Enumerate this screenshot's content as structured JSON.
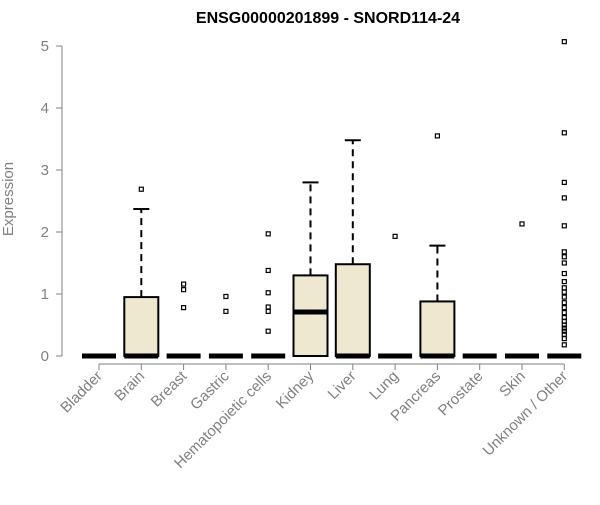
{
  "chart_data": {
    "type": "box",
    "title": "ENSG00000201899 - SNORD114-24",
    "xlabel": "",
    "ylabel": "Expression",
    "ylim": [
      0,
      5.2
    ],
    "yticks": [
      0,
      1,
      2,
      3,
      4,
      5
    ],
    "grid": false,
    "legend": "none",
    "box_fill": "#efe8d0",
    "categories": [
      "Bladder",
      "Brain",
      "Breast",
      "Gastric",
      "Hematopoietic cells",
      "Kidney",
      "Liver",
      "Lung",
      "Pancreas",
      "Prostate",
      "Skin",
      "Unknown / Other"
    ],
    "boxes": [
      {
        "category": "Bladder",
        "q1": 0,
        "median": 0,
        "q3": 0,
        "whisker_low": 0,
        "whisker_high": 0,
        "outliers": []
      },
      {
        "category": "Brain",
        "q1": 0,
        "median": 0,
        "q3": 0.95,
        "whisker_low": 0,
        "whisker_high": 2.37,
        "outliers": [
          2.69
        ]
      },
      {
        "category": "Breast",
        "q1": 0,
        "median": 0,
        "q3": 0,
        "whisker_low": 0,
        "whisker_high": 0,
        "outliers": [
          0.78,
          1.07,
          1.16
        ]
      },
      {
        "category": "Gastric",
        "q1": 0,
        "median": 0,
        "q3": 0,
        "whisker_low": 0,
        "whisker_high": 0,
        "outliers": [
          0.72,
          0.96
        ]
      },
      {
        "category": "Hematopoietic cells",
        "q1": 0,
        "median": 0,
        "q3": 0,
        "whisker_low": 0,
        "whisker_high": 0,
        "outliers": [
          0.4,
          0.72,
          0.79,
          1.02,
          1.38,
          1.97
        ]
      },
      {
        "category": "Kidney",
        "q1": 0,
        "median": 0.71,
        "q3": 1.3,
        "whisker_low": 0,
        "whisker_high": 2.8,
        "outliers": []
      },
      {
        "category": "Liver",
        "q1": 0,
        "median": 0,
        "q3": 1.48,
        "whisker_low": 0,
        "whisker_high": 3.48,
        "outliers": []
      },
      {
        "category": "Lung",
        "q1": 0,
        "median": 0,
        "q3": 0,
        "whisker_low": 0,
        "whisker_high": 0,
        "outliers": [
          1.93
        ]
      },
      {
        "category": "Pancreas",
        "q1": 0,
        "median": 0,
        "q3": 0.88,
        "whisker_low": 0,
        "whisker_high": 1.78,
        "outliers": [
          3.55
        ]
      },
      {
        "category": "Prostate",
        "q1": 0,
        "median": 0,
        "q3": 0,
        "whisker_low": 0,
        "whisker_high": 0,
        "outliers": []
      },
      {
        "category": "Skin",
        "q1": 0,
        "median": 0,
        "q3": 0,
        "whisker_low": 0,
        "whisker_high": 0,
        "outliers": [
          2.13
        ]
      },
      {
        "category": "Unknown / Other",
        "q1": 0,
        "median": 0,
        "q3": 0,
        "whisker_low": 0,
        "whisker_high": 0,
        "outliers": [
          0.18,
          0.28,
          0.35,
          0.4,
          0.45,
          0.5,
          0.56,
          0.62,
          0.7,
          0.78,
          0.86,
          0.95,
          1.03,
          1.1,
          1.2,
          1.33,
          1.5,
          1.6,
          1.68,
          2.1,
          2.55,
          2.8,
          3.6,
          5.07
        ]
      }
    ]
  }
}
